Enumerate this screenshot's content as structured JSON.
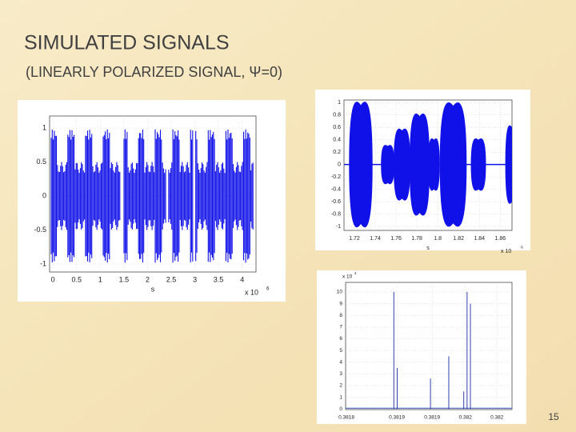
{
  "title": "SIMULATED SIGNALS",
  "subtitle": "(LINEARLY POLARIZED SIGNAL, Ψ=0)",
  "page_number": "15",
  "plots": [
    {
      "yticks": [
        "1",
        "0.5",
        "0",
        "-0.5",
        "-1"
      ],
      "xticks": [
        "0",
        "0.5",
        "1",
        "1.5",
        "2",
        "2.5",
        "3",
        "3.5",
        "4"
      ],
      "xlabel": "s",
      "x_scale": {
        "base": "x 10",
        "exponent": "6"
      }
    },
    {
      "yticks": [
        "1",
        "0.8",
        "0.6",
        "0.4",
        "0.2",
        "0",
        "-0.2",
        "-0.4",
        "-0.6",
        "-0.8",
        "-1"
      ],
      "xticks": [
        "1.72",
        "1.74",
        "1.76",
        "1.78",
        "1.8",
        "1.82",
        "1.84",
        "1.86"
      ],
      "xlabel": "s",
      "x_scale": {
        "base": "x 10",
        "exponent": "6"
      }
    },
    {
      "y_scale": {
        "base": "x 10",
        "exponent": "4"
      },
      "yticks": [
        "10",
        "9",
        "8",
        "7",
        "6",
        "5",
        "4",
        "3",
        "2",
        "1",
        "0"
      ],
      "xticks": [
        "0.3818",
        "0.3819",
        "0.3819",
        "0.382",
        "0.382"
      ]
    }
  ]
}
